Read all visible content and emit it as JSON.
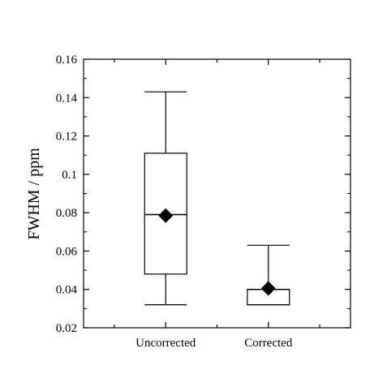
{
  "chart_data": {
    "type": "box",
    "ylabel": "FWHM / ppm",
    "ylim": [
      0.02,
      0.16
    ],
    "yticks": [
      0.02,
      0.04,
      0.06,
      0.08,
      0.1,
      0.12,
      0.14,
      0.16
    ],
    "ytick_labels": [
      "0.02",
      "0.04",
      "0.06",
      "0.08",
      "0.1",
      "0.12",
      "0.14",
      "0.16"
    ],
    "categories": [
      "Uncorrected",
      "Corrected"
    ],
    "boxes": [
      {
        "min": 0.032,
        "q1": 0.048,
        "median": 0.079,
        "q3": 0.111,
        "max": 0.143,
        "mean": 0.0785
      },
      {
        "min": 0.032,
        "q1": 0.032,
        "median": 0.04,
        "q3": 0.04,
        "max": 0.063,
        "mean": 0.0405
      }
    ],
    "grid": false,
    "legend": "none",
    "colors": {
      "stroke": "#000000",
      "marker": "#000000",
      "background": "#ffffff"
    },
    "marker": "diamond"
  }
}
